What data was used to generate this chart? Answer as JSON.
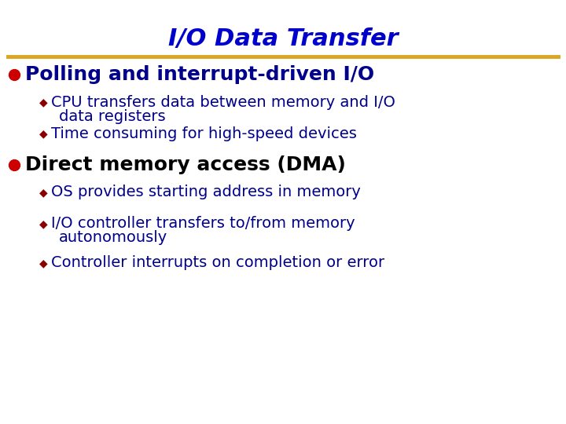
{
  "title": "I/O Data Transfer",
  "title_color": "#0000CC",
  "title_fontsize": 22,
  "separator_color": "#DAA520",
  "bg_color": "#FFFFFF",
  "bullet_color": "#CC0000",
  "sub_bullet_color": "#8B0000",
  "text_color_blue": "#00008B",
  "text_color_black": "#000000",
  "bullet1_text": "Polling and interrupt-driven I/O",
  "bullet1_fontsize": 18,
  "bullet2_text": "Direct memory access (DMA)",
  "bullet2_fontsize": 18,
  "sub_bullets_1": [
    "CPU transfers data between memory and I/O",
    "   data registers",
    "Time consuming for high-speed devices"
  ],
  "sub_bullets_2": [
    "OS provides starting address in memory",
    "I/O controller transfers to/from memory",
    "   autonomously",
    "Controller interrupts on completion or error"
  ],
  "sub_fontsize": 14
}
